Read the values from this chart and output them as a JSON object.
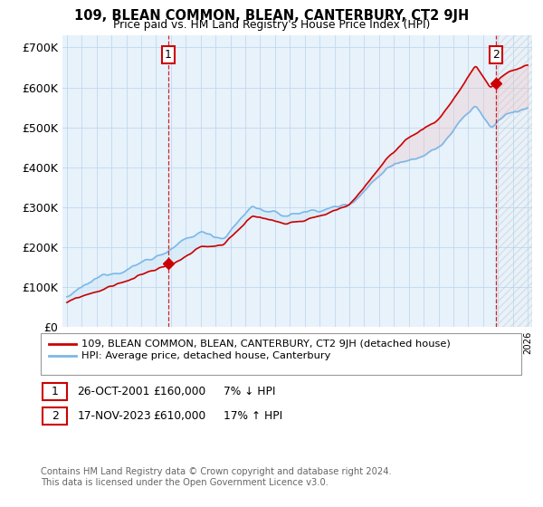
{
  "title": "109, BLEAN COMMON, BLEAN, CANTERBURY, CT2 9JH",
  "subtitle": "Price paid vs. HM Land Registry's House Price Index (HPI)",
  "ylabel_ticks": [
    "£0",
    "£100K",
    "£200K",
    "£300K",
    "£400K",
    "£500K",
    "£600K",
    "£700K"
  ],
  "ytick_values": [
    0,
    100000,
    200000,
    300000,
    400000,
    500000,
    600000,
    700000
  ],
  "ylim": [
    0,
    730000
  ],
  "xlim_start": 1994.7,
  "xlim_end": 2026.3,
  "hpi_color": "#7ab8e8",
  "hpi_fill_color": "#d0e8f8",
  "price_color": "#cc0000",
  "transaction1_x": 2001.82,
  "transaction1_y": 160000,
  "transaction2_x": 2023.88,
  "transaction2_y": 610000,
  "legend_price_label": "109, BLEAN COMMON, BLEAN, CANTERBURY, CT2 9JH (detached house)",
  "legend_hpi_label": "HPI: Average price, detached house, Canterbury",
  "note1_label": "1",
  "note1_date": "26-OCT-2001",
  "note1_price": "£160,000",
  "note1_hpi": "7% ↓ HPI",
  "note2_label": "2",
  "note2_date": "17-NOV-2023",
  "note2_price": "£610,000",
  "note2_hpi": "17% ↑ HPI",
  "footer": "Contains HM Land Registry data © Crown copyright and database right 2024.\nThis data is licensed under the Open Government Licence v3.0.",
  "background_color": "#ffffff",
  "plot_bg_color": "#e8f2fb",
  "grid_color": "#c0d8ee"
}
